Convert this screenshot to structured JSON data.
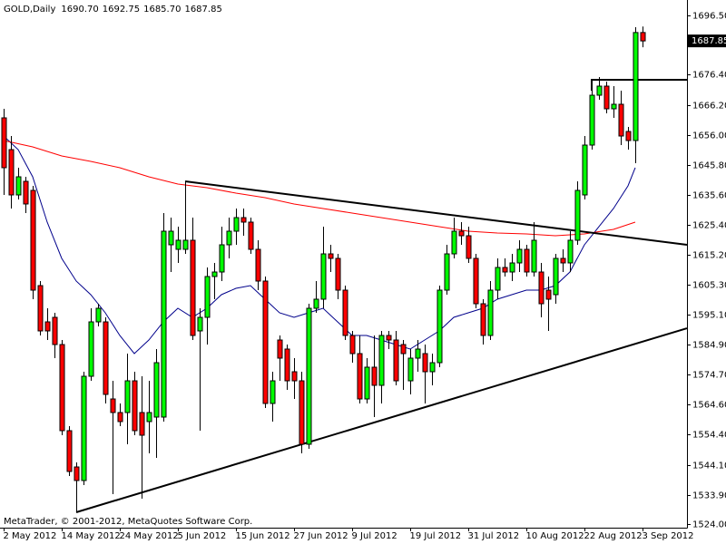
{
  "chart_data": {
    "type": "candlestick",
    "symbol": "GOLD,Daily",
    "header_values": [
      "1690.70",
      "1692.75",
      "1685.70",
      "1687.85"
    ],
    "footer": "MetaTrader, © 2001-2012, MetaQuotes Software Corp.",
    "last_price": 1687.85,
    "up_color": "#00ff00",
    "down_color": "#ff0000",
    "categories": [
      "2 May 2012",
      null,
      null,
      null,
      null,
      null,
      null,
      null,
      "14 May 2012",
      null,
      null,
      null,
      null,
      null,
      null,
      null,
      "24 May 2012",
      null,
      null,
      null,
      null,
      null,
      null,
      null,
      "5 Jun 2012",
      null,
      null,
      null,
      null,
      null,
      null,
      null,
      "15 Jun 2012",
      null,
      null,
      null,
      null,
      null,
      null,
      null,
      "27 Jun 2012",
      null,
      null,
      null,
      null,
      null,
      null,
      null,
      "9 Jul 2012",
      null,
      null,
      null,
      null,
      null,
      null,
      null,
      "19 Jul 2012",
      null,
      null,
      null,
      null,
      null,
      null,
      null,
      "31 Jul 2012",
      null,
      null,
      null,
      null,
      null,
      null,
      null,
      "10 Aug 2012",
      null,
      null,
      null,
      null,
      null,
      null,
      null,
      "22 Aug 2012",
      null,
      null,
      null,
      null,
      null,
      null,
      null,
      "3 Sep 2012"
    ],
    "open": [
      1661.76,
      1650.99,
      1635.62,
      1640.23,
      1637.16,
      1604.87,
      1592.57,
      1594.11,
      1584.88,
      1555.67,
      1543.37,
      1538.76,
      1574.12,
      1592.57,
      1592.57,
      1566.43,
      1561.82,
      1561.82,
      1572.58,
      1561.82,
      1558.75,
      1560.28,
      1560.28,
      1618.71,
      1617.17,
      1617.17,
      1620.25,
      1589.5,
      1594.11,
      1607.95,
      1609.48,
      1618.71,
      1623.32,
      1627.93,
      1626.4,
      1617.17,
      1606.41,
      1564.9,
      1586.42,
      1583.35,
      1575.66,
      1572.58,
      1551.06,
      1597.18,
      1600.26,
      1615.63,
      1614.1,
      1603.33,
      1587.96,
      1581.81,
      1566.43,
      1577.2,
      1571.05,
      1587.96,
      1586.42,
      1584.88,
      1572.58,
      1580.27,
      1581.81,
      1575.66,
      1578.73,
      1603.33,
      1615.63,
      1623.32,
      1621.78,
      1614.1,
      1598.72,
      1587.96,
      1603.33,
      1611.02,
      1609.48,
      1612.56,
      1617.17,
      1609.48,
      1609.48,
      1603.33,
      1601.8,
      1614.1,
      1612.56,
      1620.25,
      1635.62,
      1652.53,
      1669.44,
      1672.52,
      1664.83,
      1666.37,
      1657.14,
      1654.07,
      1690.7
    ],
    "high": [
      1664.83,
      1655.6,
      1644.85,
      1641.77,
      1638.7,
      1606.41,
      1597.18,
      1595.65,
      1586.42,
      1557.21,
      1544.91,
      1575.66,
      1597.18,
      1598.72,
      1594.11,
      1572.58,
      1564.9,
      1581.81,
      1575.66,
      1574.12,
      1572.58,
      1583.35,
      1629.47,
      1627.93,
      1624.86,
      1640.23,
      1627.93,
      1597.18,
      1611.02,
      1612.56,
      1624.86,
      1627.93,
      1631.01,
      1631.01,
      1627.93,
      1620.25,
      1607.95,
      1575.66,
      1587.96,
      1584.88,
      1580.27,
      1575.66,
      1598.72,
      1606.41,
      1624.86,
      1618.71,
      1615.63,
      1604.87,
      1589.5,
      1587.96,
      1580.27,
      1587.96,
      1589.5,
      1589.5,
      1589.5,
      1586.42,
      1583.35,
      1586.42,
      1584.88,
      1581.81,
      1604.87,
      1618.71,
      1627.93,
      1626.4,
      1624.86,
      1615.63,
      1600.26,
      1606.41,
      1614.1,
      1614.1,
      1615.63,
      1620.25,
      1618.71,
      1626.4,
      1612.56,
      1607.95,
      1615.63,
      1617.17,
      1623.32,
      1640.23,
      1655.6,
      1672.52,
      1675.59,
      1674.06,
      1672.52,
      1670.98,
      1658.68,
      1692.5,
      1692.75
    ],
    "low": [
      1635.62,
      1631.01,
      1634.08,
      1629.47,
      1600.26,
      1587.96,
      1586.42,
      1580.27,
      1554.13,
      1540.3,
      1528.0,
      1537.22,
      1572.58,
      1591.03,
      1564.9,
      1534.15,
      1557.21,
      1551.06,
      1554.13,
      1532.61,
      1547.98,
      1546.45,
      1558.75,
      1609.48,
      1612.56,
      1615.63,
      1586.42,
      1555.67,
      1584.88,
      1600.26,
      1606.41,
      1614.1,
      1618.71,
      1621.78,
      1615.63,
      1603.33,
      1563.36,
      1558.75,
      1572.58,
      1569.51,
      1566.43,
      1547.98,
      1549.52,
      1595.65,
      1597.18,
      1609.48,
      1600.26,
      1586.42,
      1578.73,
      1564.9,
      1564.9,
      1560.28,
      1564.9,
      1583.35,
      1571.05,
      1569.51,
      1567.97,
      1575.66,
      1564.9,
      1571.05,
      1577.2,
      1601.8,
      1614.1,
      1618.71,
      1612.56,
      1597.18,
      1584.88,
      1586.42,
      1600.26,
      1607.95,
      1606.41,
      1609.48,
      1607.95,
      1607.95,
      1594.11,
      1589.5,
      1598.72,
      1609.48,
      1609.48,
      1618.71,
      1634.08,
      1650.99,
      1667.9,
      1663.29,
      1661.76,
      1652.53,
      1650.99,
      1646.38,
      1685.7
    ],
    "close": [
      1644.85,
      1635.62,
      1641.77,
      1632.55,
      1603.33,
      1589.5,
      1589.5,
      1584.88,
      1555.67,
      1541.83,
      1538.76,
      1574.12,
      1592.57,
      1597.18,
      1567.97,
      1561.82,
      1558.75,
      1572.58,
      1555.67,
      1554.13,
      1561.82,
      1578.73,
      1623.32,
      1623.32,
      1620.25,
      1620.25,
      1587.96,
      1594.11,
      1607.95,
      1609.48,
      1618.71,
      1623.32,
      1627.93,
      1626.4,
      1617.17,
      1606.41,
      1564.9,
      1572.58,
      1580.27,
      1572.58,
      1572.58,
      1551.06,
      1597.18,
      1600.26,
      1615.63,
      1614.1,
      1603.33,
      1587.96,
      1581.81,
      1566.43,
      1577.2,
      1571.05,
      1587.96,
      1586.42,
      1572.58,
      1581.81,
      1580.27,
      1583.35,
      1575.66,
      1578.73,
      1603.33,
      1615.63,
      1623.32,
      1621.78,
      1614.1,
      1598.72,
      1587.96,
      1603.33,
      1611.02,
      1609.48,
      1612.56,
      1617.17,
      1609.48,
      1620.25,
      1598.72,
      1600.26,
      1614.1,
      1612.56,
      1620.25,
      1637.16,
      1652.53,
      1669.44,
      1672.52,
      1664.83,
      1666.37,
      1655.6,
      1654.07,
      1690.7,
      1687.85
    ],
    "lines": [
      {
        "color": "#00008b",
        "width": 1,
        "x": [
          0,
          2,
          4,
          6,
          8,
          10,
          12,
          14,
          16,
          18,
          20,
          22,
          24,
          26,
          28,
          30,
          32,
          34,
          36,
          38,
          40,
          42,
          44,
          46,
          48,
          50,
          52,
          54,
          56,
          58,
          60,
          62,
          64,
          66,
          68,
          70,
          72,
          74,
          76,
          78,
          80,
          82,
          84,
          86,
          87
        ],
        "values": [
          1655.6,
          1650.99,
          1641.77,
          1626.4,
          1614.1,
          1606.41,
          1601.8,
          1595.65,
          1587.96,
          1581.81,
          1586.42,
          1592.57,
          1597.18,
          1594.11,
          1597.18,
          1601.8,
          1603.95,
          1604.87,
          1600.26,
          1595.65,
          1594.11,
          1595.65,
          1597.18,
          1592.57,
          1587.96,
          1587.96,
          1586.42,
          1584.88,
          1583.35,
          1586.42,
          1589.5,
          1594.11,
          1595.65,
          1597.18,
          1600.26,
          1601.8,
          1603.33,
          1603.33,
          1604.87,
          1609.48,
          1618.71,
          1624.86,
          1631.01,
          1638.7,
          1644.85
        ]
      },
      {
        "color": "#ff0000",
        "width": 1,
        "x": [
          0,
          4,
          8,
          12,
          16,
          20,
          24,
          28,
          32,
          36,
          40,
          44,
          48,
          52,
          56,
          60,
          64,
          68,
          72,
          76,
          80,
          84,
          87
        ],
        "values": [
          1654.07,
          1651.92,
          1648.84,
          1646.99,
          1644.85,
          1641.77,
          1639.31,
          1638.08,
          1636.23,
          1634.7,
          1632.55,
          1631.01,
          1629.47,
          1627.93,
          1626.4,
          1624.86,
          1623.32,
          1622.7,
          1622.4,
          1621.78,
          1622.4,
          1623.94,
          1626.4
        ]
      },
      {
        "color": "#000000",
        "width": 2,
        "x": [
          25,
          94.125
        ],
        "values": [
          1640.23,
          1618.71
        ]
      },
      {
        "color": "#000000",
        "width": 2,
        "x": [
          10,
          94.125
        ],
        "values": [
          1528.0,
          1590.41
        ]
      },
      {
        "color": "#000000",
        "width": 2,
        "x": [
          81,
          81,
          94.125
        ],
        "values": [
          1671.0,
          1674.67,
          1674.67
        ]
      }
    ],
    "xlim": [
      -0.5,
      94.125
    ],
    "ylim": [
      1522.77,
      1701.73
    ],
    "yticks": [
      {
        "value": 1696.5,
        "label": "1696.50"
      },
      {
        "value": 1676.4,
        "label": "1676.40"
      },
      {
        "value": 1666.2,
        "label": "1666.20"
      },
      {
        "value": 1656.0,
        "label": "1656.00"
      },
      {
        "value": 1645.8,
        "label": "1645.80"
      },
      {
        "value": 1635.6,
        "label": "1635.60"
      },
      {
        "value": 1625.4,
        "label": "1625.40"
      },
      {
        "value": 1615.2,
        "label": "1615.20"
      },
      {
        "value": 1605.3,
        "label": "1605.30"
      },
      {
        "value": 1595.1,
        "label": "1595.10"
      },
      {
        "value": 1584.9,
        "label": "1584.90"
      },
      {
        "value": 1574.7,
        "label": "1574.70"
      },
      {
        "value": 1564.6,
        "label": "1564.60"
      },
      {
        "value": 1554.4,
        "label": "1554.40"
      },
      {
        "value": 1544.1,
        "label": "1544.10"
      },
      {
        "value": 1533.9,
        "label": "1533.90"
      },
      {
        "value": 1524.0,
        "label": "1524.00"
      }
    ]
  }
}
